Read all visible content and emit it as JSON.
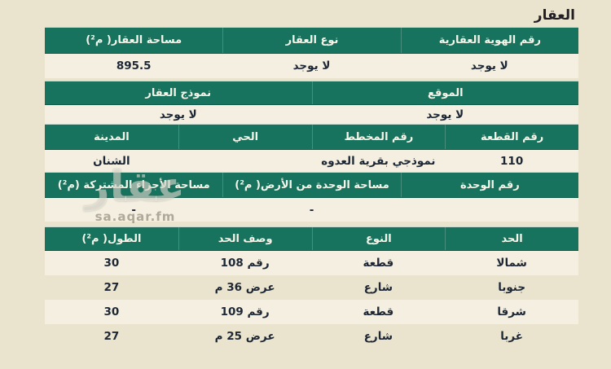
{
  "page": {
    "title": "العقار"
  },
  "colors": {
    "page_background": "#eae3cd",
    "header_green": "#17735e",
    "header_text": "#f6f4e9",
    "row_light": "#f4efe0",
    "body_text": "#1d2735"
  },
  "watermark": {
    "logo_text": "عقار",
    "url_text": "sa.aqar.fm"
  },
  "tables": [
    {
      "name": "property-identity",
      "columns": [
        "رقم الهوية العقارية",
        "نوع العقار",
        "مساحة العقار( م²)"
      ],
      "rows": [
        [
          "لا يوجد",
          "لا يوجد",
          "895.5"
        ]
      ]
    },
    {
      "name": "location-model",
      "columns": [
        "الموقع",
        "نموذج العقار"
      ],
      "rows": [
        [
          "لا يوجد",
          "لا يوجد"
        ]
      ]
    },
    {
      "name": "plot-plan-district-city",
      "columns": [
        "رقم القطعة",
        "رقم المخطط",
        "الحي",
        "المدينة"
      ],
      "rows": [
        [
          "110",
          "نموذجي بقرية العدوه",
          "",
          "الشنان"
        ]
      ]
    },
    {
      "name": "unit-areas",
      "columns": [
        "رقم الوحدة",
        "مساحة الوحدة من الأرض( م²)",
        "مساحة الأجزاء المشتركة (م²)"
      ],
      "rows": [
        [
          "",
          "-",
          "-"
        ]
      ]
    },
    {
      "name": "boundaries",
      "columns": [
        "الحد",
        "النوع",
        "وصف الحد",
        "الطول( م²)"
      ],
      "rows": [
        [
          "شمالا",
          "قطعة",
          "رقم 108",
          "30"
        ],
        [
          "جنوبا",
          "شارع",
          "عرض 36 م",
          "27"
        ],
        [
          "شرقا",
          "قطعة",
          "رقم 109",
          "30"
        ],
        [
          "غربا",
          "شارع",
          "عرض 25 م",
          "27"
        ]
      ]
    }
  ]
}
